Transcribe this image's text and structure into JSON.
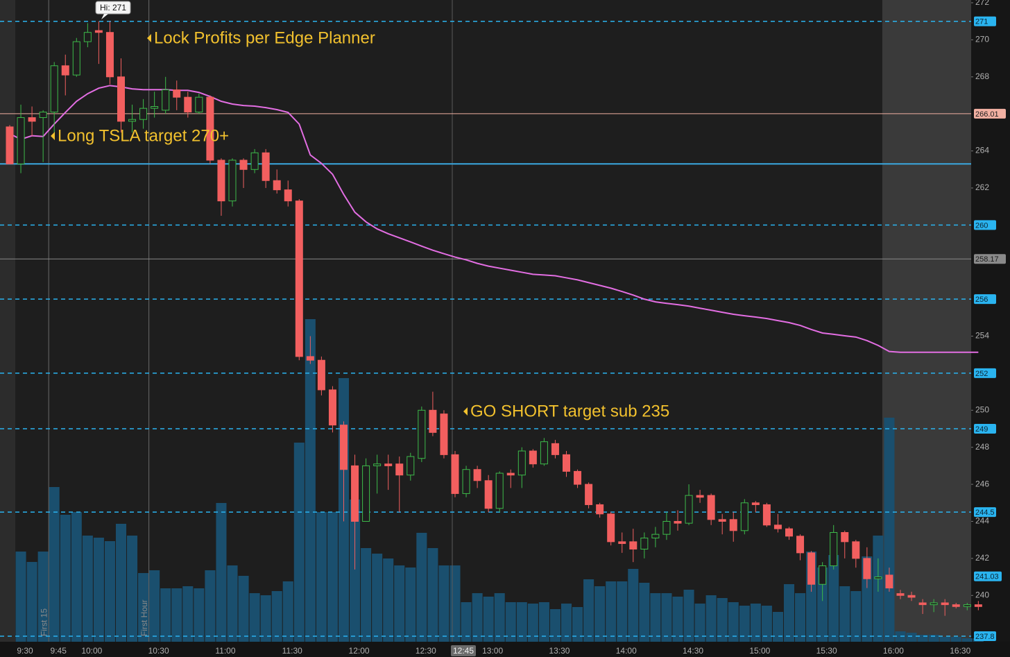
{
  "chart_data": {
    "type": "candlestick",
    "x": [
      "9:25",
      "9:30",
      "9:35",
      "9:40",
      "9:45",
      "9:50",
      "9:55",
      "10:00",
      "10:05",
      "10:10",
      "10:15",
      "10:20",
      "10:25",
      "10:30",
      "10:35",
      "10:40",
      "10:45",
      "10:50",
      "10:55",
      "11:00",
      "11:05",
      "11:10",
      "11:15",
      "11:20",
      "11:25",
      "11:30",
      "11:35",
      "11:40",
      "11:45",
      "11:50",
      "11:55",
      "12:00",
      "12:05",
      "12:10",
      "12:15",
      "12:20",
      "12:25",
      "12:30",
      "12:35",
      "12:40",
      "12:45",
      "12:50",
      "12:55",
      "13:00",
      "13:05",
      "13:10",
      "13:15",
      "13:20",
      "13:25",
      "13:30",
      "13:35",
      "13:40",
      "13:45",
      "13:50",
      "13:55",
      "14:00",
      "14:05",
      "14:10",
      "14:15",
      "14:20",
      "14:25",
      "14:30",
      "14:35",
      "14:40",
      "14:45",
      "14:50",
      "14:55",
      "15:00",
      "15:05",
      "15:10",
      "15:15",
      "15:20",
      "15:25",
      "15:30",
      "15:35",
      "15:40",
      "15:45",
      "15:50",
      "15:55",
      "16:00",
      "16:05",
      "16:10",
      "16:15",
      "16:20",
      "16:25",
      "16:30",
      "16:35",
      "16:40"
    ],
    "open": [
      265.3,
      263.3,
      265.8,
      265.8,
      266.1,
      268.6,
      268.1,
      269.9,
      270.5,
      270.4,
      268.0,
      265.6,
      265.7,
      266.3,
      266.2,
      267.3,
      266.9,
      266.1,
      266.9,
      263.5,
      261.3,
      263.5,
      263.0,
      263.9,
      262.4,
      261.9,
      261.3,
      252.9,
      252.7,
      251.1,
      249.2,
      247.0,
      244.0,
      247.0,
      247.1,
      247.1,
      246.5,
      247.4,
      250.0,
      249.8,
      247.6,
      245.5,
      246.8,
      246.2,
      244.7,
      246.6,
      246.5,
      247.8,
      247.1,
      248.2,
      247.6,
      246.7,
      246.0,
      244.9,
      244.4,
      242.9,
      242.9,
      242.5,
      243.1,
      243.3,
      244.0,
      243.9,
      245.4,
      245.4,
      244.1,
      244.1,
      243.5,
      245.0,
      244.9,
      243.8,
      243.6,
      243.2,
      242.3,
      240.6,
      241.6,
      243.4,
      242.9,
      242.0,
      240.9,
      241.1,
      240.1,
      240.0,
      239.6,
      239.5,
      239.6,
      239.5,
      239.4,
      239.5
    ],
    "high": [
      265.4,
      266.5,
      266.4,
      266.2,
      268.8,
      269.2,
      270.1,
      270.9,
      271.0,
      271.0,
      269.0,
      266.5,
      266.8,
      267.2,
      268.0,
      267.8,
      267.2,
      267.1,
      267.0,
      263.6,
      263.6,
      263.6,
      264.1,
      264.1,
      263.0,
      262.4,
      261.4,
      254.0,
      252.9,
      251.3,
      249.4,
      247.6,
      247.4,
      247.6,
      247.6,
      247.5,
      247.7,
      250.2,
      251.0,
      250.0,
      247.8,
      247.0,
      247.0,
      246.5,
      246.7,
      246.8,
      248.0,
      247.9,
      248.5,
      248.4,
      247.8,
      246.8,
      246.1,
      245.0,
      244.5,
      243.4,
      243.6,
      243.4,
      243.7,
      244.5,
      244.6,
      246.0,
      245.7,
      245.5,
      244.4,
      244.5,
      245.2,
      245.1,
      245.0,
      244.4,
      243.7,
      243.3,
      242.4,
      241.8,
      243.8,
      243.5,
      243.0,
      242.6,
      242.0,
      241.5,
      240.3,
      240.2,
      239.8,
      239.8,
      239.8,
      239.6,
      239.6,
      239.7
    ],
    "low": [
      263.3,
      262.8,
      264.8,
      263.4,
      265.0,
      267.0,
      268.0,
      269.6,
      268.7,
      267.6,
      265.0,
      265.0,
      265.2,
      265.8,
      266.0,
      266.2,
      265.8,
      266.0,
      263.3,
      260.5,
      261.0,
      262.0,
      262.8,
      262.0,
      261.7,
      261.0,
      252.7,
      252.5,
      250.8,
      248.8,
      244.0,
      241.4,
      244.0,
      245.5,
      245.7,
      244.5,
      246.2,
      247.2,
      248.6,
      247.4,
      245.3,
      245.3,
      245.8,
      244.5,
      244.5,
      245.8,
      245.8,
      246.9,
      247.0,
      247.4,
      246.4,
      245.8,
      244.7,
      244.2,
      242.7,
      242.3,
      241.8,
      242.0,
      242.6,
      243.0,
      243.5,
      243.8,
      245.0,
      243.8,
      243.3,
      242.9,
      243.3,
      244.5,
      243.7,
      243.4,
      243.0,
      241.9,
      240.2,
      239.7,
      241.4,
      242.0,
      241.5,
      240.4,
      240.2,
      240.2,
      239.8,
      239.7,
      239.0,
      239.1,
      238.9,
      239.3,
      239.2,
      239.2
    ],
    "close": [
      263.3,
      265.8,
      265.6,
      266.1,
      268.6,
      268.1,
      269.9,
      270.4,
      270.4,
      268.0,
      265.6,
      265.7,
      266.3,
      266.4,
      267.3,
      266.9,
      266.1,
      266.9,
      263.5,
      261.3,
      263.5,
      263.0,
      263.9,
      262.4,
      261.9,
      261.3,
      252.9,
      252.7,
      251.1,
      249.2,
      246.8,
      244.0,
      247.0,
      247.1,
      247.0,
      246.5,
      247.5,
      250.0,
      248.8,
      247.6,
      245.5,
      246.8,
      246.2,
      244.7,
      246.6,
      246.5,
      247.8,
      247.1,
      248.3,
      247.6,
      246.7,
      246.0,
      244.9,
      244.4,
      242.9,
      242.8,
      242.5,
      243.1,
      243.3,
      244.0,
      243.9,
      245.4,
      245.3,
      244.1,
      244.0,
      243.5,
      245.0,
      244.9,
      243.8,
      243.6,
      243.2,
      242.3,
      240.6,
      241.6,
      243.4,
      242.9,
      242.0,
      240.9,
      241.0,
      240.4,
      240.0,
      239.9,
      239.5,
      239.6,
      239.5,
      239.4,
      239.5,
      239.4
    ],
    "volume": {
      "color": "#1a4f6e",
      "ylim": [
        0,
        1850
      ],
      "values": [
        null,
        260,
        230,
        260,
        446,
        366,
        374,
        306,
        300,
        290,
        340,
        306,
        198,
        206,
        154,
        154,
        160,
        154,
        206,
        400,
        220,
        190,
        140,
        134,
        146,
        174,
        574,
        930,
        374,
        374,
        760,
        410,
        270,
        254,
        240,
        220,
        214,
        314,
        270,
        220,
        220,
        114,
        140,
        130,
        140,
        114,
        114,
        110,
        114,
        94,
        110,
        100,
        180,
        160,
        174,
        174,
        210,
        170,
        140,
        140,
        130,
        150,
        110,
        134,
        126,
        114,
        104,
        110,
        104,
        86,
        166,
        140,
        260,
        214,
        250,
        160,
        146,
        246,
        306,
        646,
        30,
        26,
        20,
        20,
        14,
        14,
        10,
        10
      ]
    },
    "vwap": {
      "color": "#e36ee3",
      "values": [
        264.93,
        264.63,
        264.82,
        264.78,
        265.45,
        266.08,
        266.68,
        267.09,
        267.39,
        267.53,
        267.46,
        267.35,
        267.31,
        267.31,
        267.31,
        267.27,
        267.27,
        267.16,
        266.94,
        266.68,
        266.53,
        266.45,
        266.42,
        266.34,
        266.23,
        266.08,
        265.45,
        263.78,
        263.33,
        262.74,
        261.65,
        260.69,
        260.17,
        259.79,
        259.53,
        259.31,
        259.09,
        258.86,
        258.64,
        258.45,
        258.27,
        258.12,
        257.93,
        257.78,
        257.67,
        257.56,
        257.45,
        257.34,
        257.3,
        257.26,
        257.15,
        257.04,
        256.89,
        256.74,
        256.59,
        256.41,
        256.22,
        256.0,
        255.85,
        255.77,
        255.7,
        255.62,
        255.51,
        255.4,
        255.29,
        255.18,
        255.1,
        255.03,
        254.95,
        254.84,
        254.73,
        254.58,
        254.36,
        254.17,
        254.1,
        254.02,
        253.95,
        253.76,
        253.5,
        253.17,
        253.13,
        253.13,
        253.13,
        253.13,
        253.13,
        253.13,
        253.13,
        253.13
      ]
    },
    "up_color": "#3dbb4a",
    "down_color": "#f25f5f",
    "ylim": [
      237.5,
      272.15
    ],
    "yticks": [
      240,
      242,
      244,
      246,
      248,
      250,
      254,
      262,
      264,
      268,
      270,
      272
    ],
    "xticks": [
      "9:30",
      "9:45",
      "10:00",
      "10:30",
      "11:00",
      "11:30",
      "12:00",
      "12:30",
      "13:00",
      "13:30",
      "14:00",
      "14:30",
      "15:00",
      "15:30",
      "16:00",
      "16:30"
    ],
    "cursor_time": "12:45",
    "sessions": {
      "regular": [
        "9:30",
        "16:00"
      ]
    },
    "markers": [
      {
        "time": "9:45",
        "label": "First 15"
      },
      {
        "time": "10:30",
        "label": "First Hour"
      }
    ],
    "dashed_levels": {
      "color": "#2ab4f0",
      "values": [
        271,
        260,
        256,
        252,
        249,
        244.5,
        237.8
      ]
    },
    "solid_level": {
      "color": "#3aa8e0",
      "value": 263.3
    },
    "price_lines": [
      {
        "value": 266.01,
        "color": "#f2b0a2"
      },
      {
        "value": 258.17,
        "color": "#8a8a8a"
      }
    ],
    "price_tags": [
      {
        "value": 241.03,
        "color": "#2ab4f0"
      }
    ],
    "annotations": [
      "Hi: 271",
      "Lock Profits per Edge Planner",
      "Long TSLA target 270+",
      "GO SHORT target sub 235"
    ]
  }
}
